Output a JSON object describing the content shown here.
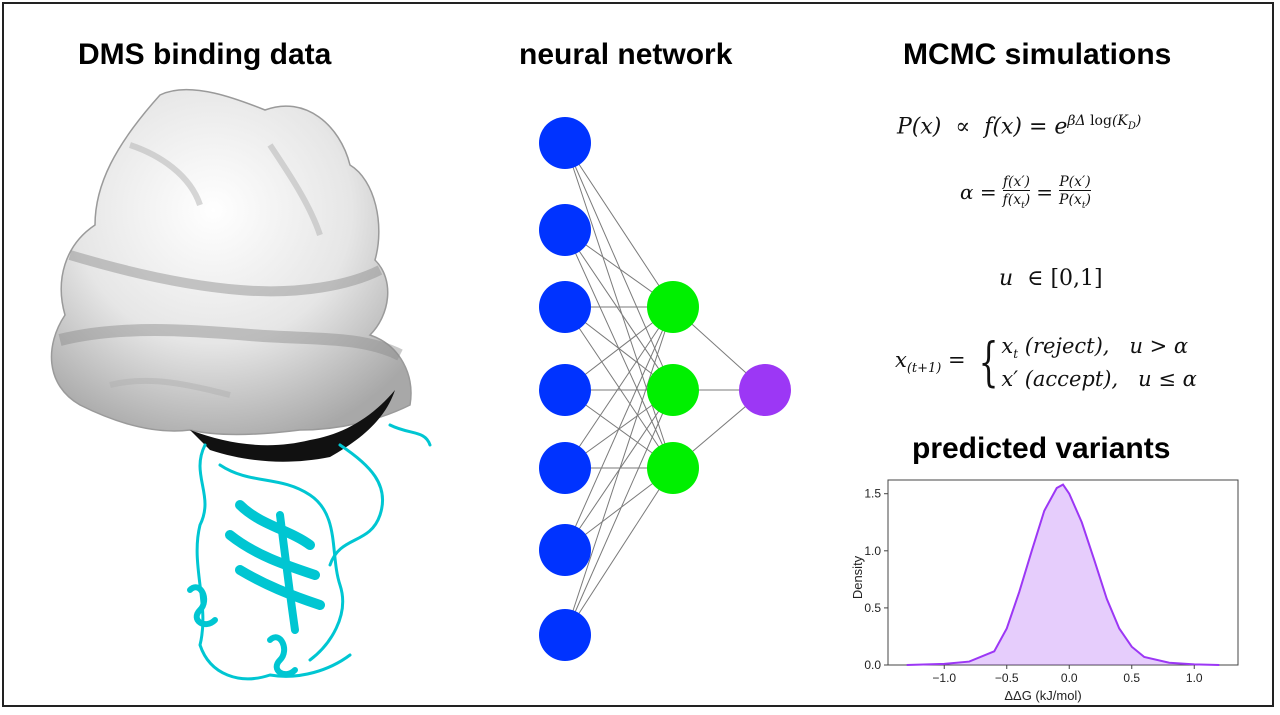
{
  "headings": {
    "dms": "DMS binding data",
    "nn": "neural network",
    "mcmc": "MCMC simulations",
    "predicted": "predicted variants"
  },
  "equations": {
    "eq1": "P(x) ∝ f(x) = e^{βΔ log(K_D)}",
    "eq2": "α = f(x′)/f(x_t) = P(x′)/P(x_t)",
    "eq3": "u ∈ [0,1]",
    "eq4": "x_(t+1) = { x_t (reject), u > α ; x′ (accept), u ≤ α }"
  },
  "network": {
    "layers": [
      7,
      3,
      1
    ],
    "colors": {
      "input": "#0033ff",
      "hidden": "#00f000",
      "output": "#9c37f5",
      "edge": "#7a7a7a"
    }
  },
  "protein": {
    "surface_color": "#e9e9e9",
    "interface_color": "#111111",
    "ribbon_color": "#00c6d2"
  },
  "chart_data": {
    "type": "area",
    "xlabel": "ΔΔG (kJ/mol)",
    "ylabel": "Density",
    "xlim": [
      -1.45,
      1.35
    ],
    "ylim": [
      0,
      1.62
    ],
    "xticks": [
      "−1.0",
      "−0.5",
      "0.0",
      "0.5",
      "1.0"
    ],
    "yticks": [
      "0.0",
      "0.5",
      "1.0",
      "1.5"
    ],
    "series": [
      {
        "color": "#9c37f5",
        "x": [
          -1.3,
          -1.0,
          -0.8,
          -0.6,
          -0.5,
          -0.4,
          -0.3,
          -0.2,
          -0.1,
          -0.05,
          0.0,
          0.1,
          0.2,
          0.3,
          0.4,
          0.5,
          0.6,
          0.8,
          1.0,
          1.2
        ],
        "y": [
          0.0,
          0.01,
          0.03,
          0.12,
          0.32,
          0.64,
          1.0,
          1.35,
          1.55,
          1.58,
          1.5,
          1.25,
          0.92,
          0.58,
          0.32,
          0.16,
          0.07,
          0.02,
          0.005,
          0.0
        ]
      }
    ]
  }
}
